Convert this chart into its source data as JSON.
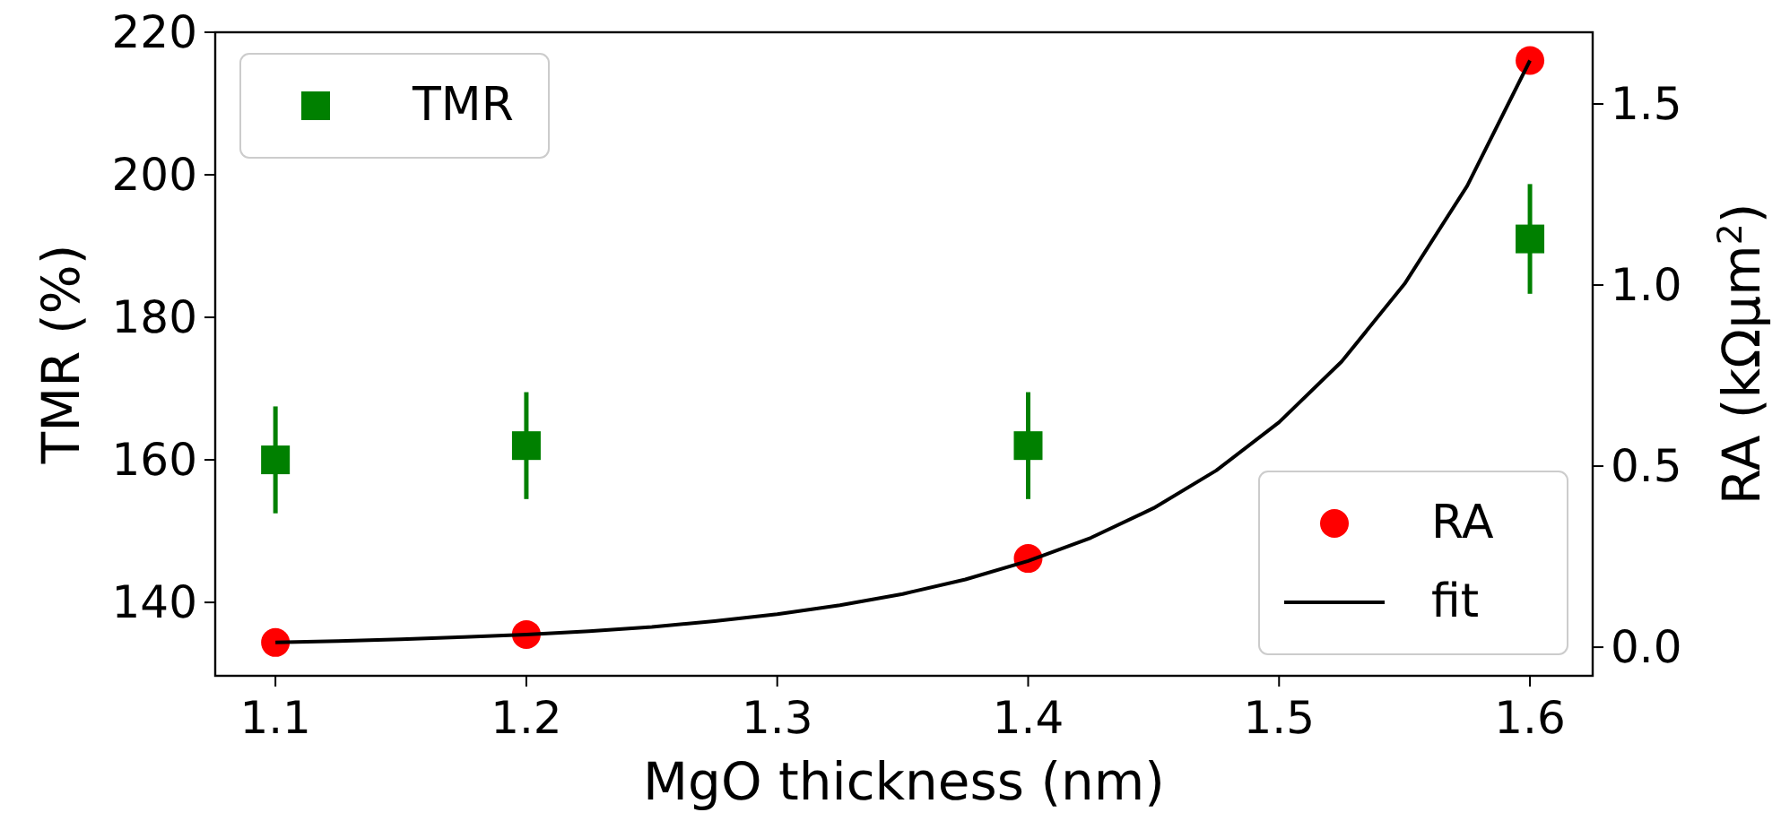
{
  "chart_data": {
    "type": "scatter",
    "xlabel": "MgO thickness (nm)",
    "ylabel": "TMR (%)",
    "y2label": "RA (kΩμm$^{2}$)",
    "xlim": [
      1.076,
      1.625
    ],
    "xticks": [
      1.1,
      1.2,
      1.3,
      1.4,
      1.5,
      1.6
    ],
    "ylim": [
      129.7,
      220
    ],
    "yticks": [
      140,
      160,
      180,
      200,
      220
    ],
    "y2lim": [
      -0.079,
      1.698
    ],
    "y2ticks": [
      {
        "value": 0,
        "label": "0.0"
      },
      {
        "value": 0.5,
        "label": "0.5"
      },
      {
        "value": 1,
        "label": "1.0"
      },
      {
        "value": 1.5,
        "label": "1.5"
      }
    ],
    "legend": "top left",
    "grid": false,
    "series": [
      {
        "name": "TMR",
        "marker": "square",
        "color": "#008000",
        "x": [
          1.1,
          1.2,
          1.4,
          1.6
        ],
        "values": [
          160,
          162,
          162,
          191
        ],
        "errors": [
          7.5,
          7.5,
          7.5,
          7.7
        ]
      },
      {
        "name": "RA",
        "marker": "circle",
        "axis": "y2",
        "color": "#ff0000",
        "x": [
          1.1,
          1.2,
          1.4,
          1.6
        ],
        "values": [
          0.013,
          0.035,
          0.245,
          1.62
        ]
      },
      {
        "name": "fit",
        "type": "line",
        "marker": "none",
        "line_style": "solid",
        "axis": "y2",
        "color": "#000000",
        "x": [
          1.1,
          1.125,
          1.15,
          1.175,
          1.2,
          1.225,
          1.25,
          1.275,
          1.3,
          1.325,
          1.35,
          1.375,
          1.4,
          1.425,
          1.45,
          1.475,
          1.5,
          1.525,
          1.55,
          1.575,
          1.6
        ],
        "values": [
          0.013,
          0.017,
          0.022,
          0.028,
          0.035,
          0.044,
          0.056,
          0.072,
          0.091,
          0.116,
          0.147,
          0.187,
          0.238,
          0.302,
          0.384,
          0.488,
          0.621,
          0.789,
          1.003,
          1.274,
          1.62
        ]
      }
    ]
  }
}
